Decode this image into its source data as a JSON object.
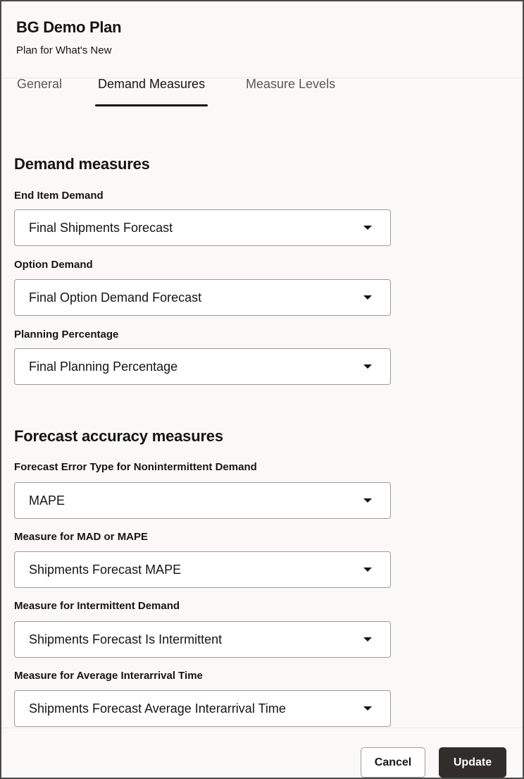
{
  "header": {
    "title": "BG Demo Plan",
    "subtitle": "Plan for What's New"
  },
  "tabs": [
    {
      "label": "General"
    },
    {
      "label": "Demand Measures",
      "active": true
    },
    {
      "label": "Measure Levels"
    }
  ],
  "sections": [
    {
      "heading": "Demand measures",
      "fields": [
        {
          "label": "End Item Demand",
          "value": "Final Shipments Forecast"
        },
        {
          "label": "Option Demand",
          "value": "Final Option Demand Forecast"
        },
        {
          "label": "Planning Percentage",
          "value": "Final Planning Percentage"
        }
      ]
    },
    {
      "heading": "Forecast accuracy measures",
      "fields": [
        {
          "label": "Forecast Error Type for Nonintermittent Demand",
          "value": "MAPE"
        },
        {
          "label": "Measure for MAD or MAPE",
          "value": "Shipments Forecast MAPE"
        },
        {
          "label": "Measure for Intermittent Demand",
          "value": "Shipments Forecast Is Intermittent"
        },
        {
          "label": "Measure for Average Interarrival Time",
          "value": "Shipments Forecast Average Interarrival Time"
        }
      ]
    }
  ],
  "footer": {
    "cancel_label": "Cancel",
    "update_label": "Update"
  },
  "colors": {
    "primary_button": "#312d2a",
    "background": "#fbf9f8"
  }
}
